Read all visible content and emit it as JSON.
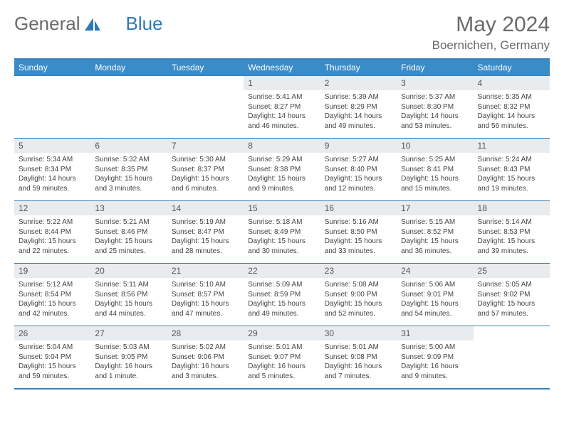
{
  "logo": {
    "text1": "General",
    "text2": "Blue",
    "color1": "#6a6a6a",
    "color2": "#2e7ab8"
  },
  "title": "May 2024",
  "location": "Boernichen, Germany",
  "header_bg": "#3a8cc9",
  "border_color": "#3a7fb8",
  "daynum_bg": "#e9ecee",
  "weekdays": [
    "Sunday",
    "Monday",
    "Tuesday",
    "Wednesday",
    "Thursday",
    "Friday",
    "Saturday"
  ],
  "weeks": [
    [
      null,
      null,
      null,
      {
        "n": "1",
        "sunrise": "5:41 AM",
        "sunset": "8:27 PM",
        "day": "14 hours and 46 minutes."
      },
      {
        "n": "2",
        "sunrise": "5:39 AM",
        "sunset": "8:29 PM",
        "day": "14 hours and 49 minutes."
      },
      {
        "n": "3",
        "sunrise": "5:37 AM",
        "sunset": "8:30 PM",
        "day": "14 hours and 53 minutes."
      },
      {
        "n": "4",
        "sunrise": "5:35 AM",
        "sunset": "8:32 PM",
        "day": "14 hours and 56 minutes."
      }
    ],
    [
      {
        "n": "5",
        "sunrise": "5:34 AM",
        "sunset": "8:34 PM",
        "day": "14 hours and 59 minutes."
      },
      {
        "n": "6",
        "sunrise": "5:32 AM",
        "sunset": "8:35 PM",
        "day": "15 hours and 3 minutes."
      },
      {
        "n": "7",
        "sunrise": "5:30 AM",
        "sunset": "8:37 PM",
        "day": "15 hours and 6 minutes."
      },
      {
        "n": "8",
        "sunrise": "5:29 AM",
        "sunset": "8:38 PM",
        "day": "15 hours and 9 minutes."
      },
      {
        "n": "9",
        "sunrise": "5:27 AM",
        "sunset": "8:40 PM",
        "day": "15 hours and 12 minutes."
      },
      {
        "n": "10",
        "sunrise": "5:25 AM",
        "sunset": "8:41 PM",
        "day": "15 hours and 15 minutes."
      },
      {
        "n": "11",
        "sunrise": "5:24 AM",
        "sunset": "8:43 PM",
        "day": "15 hours and 19 minutes."
      }
    ],
    [
      {
        "n": "12",
        "sunrise": "5:22 AM",
        "sunset": "8:44 PM",
        "day": "15 hours and 22 minutes."
      },
      {
        "n": "13",
        "sunrise": "5:21 AM",
        "sunset": "8:46 PM",
        "day": "15 hours and 25 minutes."
      },
      {
        "n": "14",
        "sunrise": "5:19 AM",
        "sunset": "8:47 PM",
        "day": "15 hours and 28 minutes."
      },
      {
        "n": "15",
        "sunrise": "5:18 AM",
        "sunset": "8:49 PM",
        "day": "15 hours and 30 minutes."
      },
      {
        "n": "16",
        "sunrise": "5:16 AM",
        "sunset": "8:50 PM",
        "day": "15 hours and 33 minutes."
      },
      {
        "n": "17",
        "sunrise": "5:15 AM",
        "sunset": "8:52 PM",
        "day": "15 hours and 36 minutes."
      },
      {
        "n": "18",
        "sunrise": "5:14 AM",
        "sunset": "8:53 PM",
        "day": "15 hours and 39 minutes."
      }
    ],
    [
      {
        "n": "19",
        "sunrise": "5:12 AM",
        "sunset": "8:54 PM",
        "day": "15 hours and 42 minutes."
      },
      {
        "n": "20",
        "sunrise": "5:11 AM",
        "sunset": "8:56 PM",
        "day": "15 hours and 44 minutes."
      },
      {
        "n": "21",
        "sunrise": "5:10 AM",
        "sunset": "8:57 PM",
        "day": "15 hours and 47 minutes."
      },
      {
        "n": "22",
        "sunrise": "5:09 AM",
        "sunset": "8:59 PM",
        "day": "15 hours and 49 minutes."
      },
      {
        "n": "23",
        "sunrise": "5:08 AM",
        "sunset": "9:00 PM",
        "day": "15 hours and 52 minutes."
      },
      {
        "n": "24",
        "sunrise": "5:06 AM",
        "sunset": "9:01 PM",
        "day": "15 hours and 54 minutes."
      },
      {
        "n": "25",
        "sunrise": "5:05 AM",
        "sunset": "9:02 PM",
        "day": "15 hours and 57 minutes."
      }
    ],
    [
      {
        "n": "26",
        "sunrise": "5:04 AM",
        "sunset": "9:04 PM",
        "day": "15 hours and 59 minutes."
      },
      {
        "n": "27",
        "sunrise": "5:03 AM",
        "sunset": "9:05 PM",
        "day": "16 hours and 1 minute."
      },
      {
        "n": "28",
        "sunrise": "5:02 AM",
        "sunset": "9:06 PM",
        "day": "16 hours and 3 minutes."
      },
      {
        "n": "29",
        "sunrise": "5:01 AM",
        "sunset": "9:07 PM",
        "day": "16 hours and 5 minutes."
      },
      {
        "n": "30",
        "sunrise": "5:01 AM",
        "sunset": "9:08 PM",
        "day": "16 hours and 7 minutes."
      },
      {
        "n": "31",
        "sunrise": "5:00 AM",
        "sunset": "9:09 PM",
        "day": "16 hours and 9 minutes."
      },
      null
    ]
  ]
}
